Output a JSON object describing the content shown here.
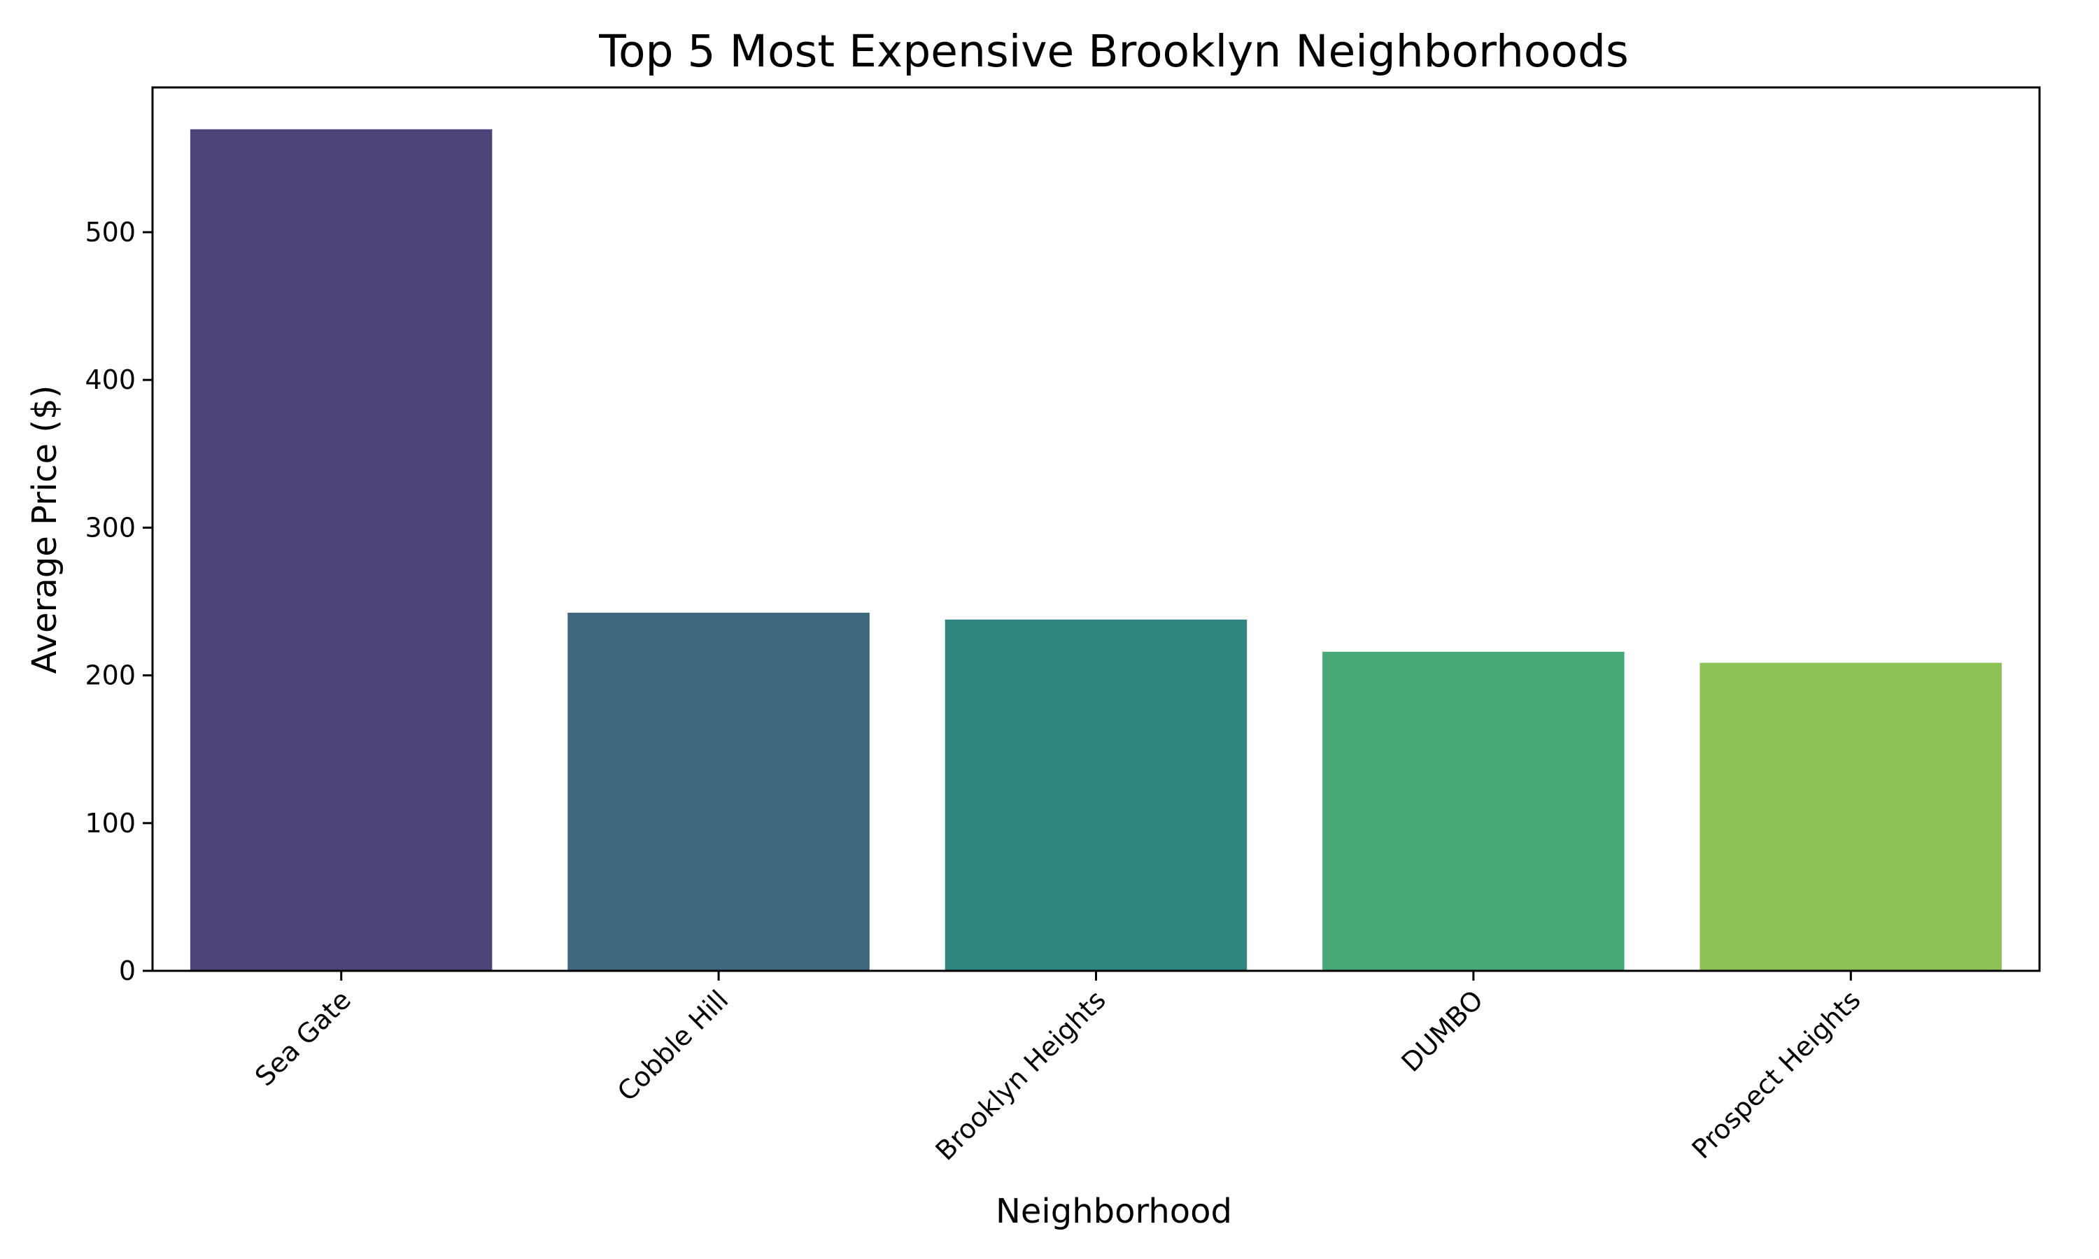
{
  "chart_data": {
    "type": "bar",
    "title": "Top 5 Most Expensive Brooklyn Neighborhoods",
    "xlabel": "Neighborhood",
    "ylabel": "Average Price ($)",
    "categories": [
      "Sea Gate",
      "Cobble Hill",
      "Brooklyn Heights",
      "DUMBO",
      "Prospect Heights"
    ],
    "values": [
      569.7,
      242.4,
      237.8,
      216.0,
      208.5
    ],
    "colors": [
      "#4b4477",
      "#3f6780",
      "#2f8580",
      "#47a878",
      "#8dc355"
    ],
    "ylim": [
      0,
      598
    ],
    "yticks": [
      0,
      100,
      200,
      300,
      400,
      500
    ],
    "xtick_rotation": 45,
    "grid": false,
    "legend": "none"
  }
}
